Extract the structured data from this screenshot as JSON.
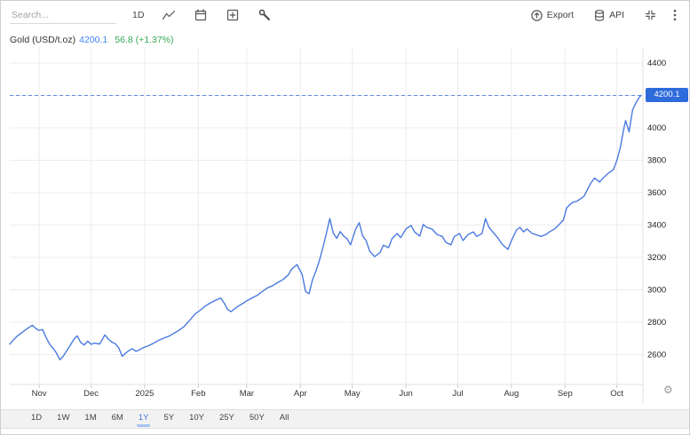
{
  "toolbar": {
    "search_placeholder": "Search...",
    "interval_label": "1D",
    "export_label": "Export",
    "api_label": "API"
  },
  "legend": {
    "series_label": "Gold (USD/t.oz)",
    "price": "4200.1",
    "change": "56.8 (+1.37%)"
  },
  "y_axis": {
    "badge": "4200.1",
    "ticks": [
      4400,
      4000,
      3800,
      3600,
      3400,
      3200,
      3000,
      2800,
      2600
    ]
  },
  "icons": {
    "settings": "⚙"
  },
  "colors": {
    "line": "#4a7be0",
    "current_price_badge": "#2e6bdb",
    "legend_price_text": "#4184f4",
    "legend_change_text": "#34a853",
    "grid": "#ececec",
    "axis_line": "#e2e2e2",
    "tick": "#c9c9c9",
    "active_range_text": "#4677e0",
    "active_range_underline": "#a6c2f5"
  },
  "range_selector": {
    "options": [
      "1D",
      "1W",
      "1M",
      "6M",
      "1Y",
      "5Y",
      "10Y",
      "25Y",
      "50Y",
      "All"
    ],
    "active": "1Y"
  },
  "chart_data": {
    "type": "line",
    "title": "Gold (USD/t.oz)",
    "legend_position": "top-left",
    "grid": true,
    "current_price": 4200.1,
    "change_label": "56.8 (+1.37%)",
    "x_range_days": 365,
    "ylim_gridlines": [
      2600,
      4400
    ],
    "y_gridline_step": 200,
    "y_tick_labels": [
      4400,
      4000,
      3800,
      3600,
      3400,
      3200,
      3000,
      2800,
      2600
    ],
    "month_ticks": [
      {
        "label": "Nov",
        "day": 17
      },
      {
        "label": "Dec",
        "day": 47
      },
      {
        "label": "2025",
        "day": 78
      },
      {
        "label": "Feb",
        "day": 109
      },
      {
        "label": "Mar",
        "day": 137
      },
      {
        "label": "Apr",
        "day": 168
      },
      {
        "label": "May",
        "day": 198
      },
      {
        "label": "Jun",
        "day": 229
      },
      {
        "label": "Jul",
        "day": 259
      },
      {
        "label": "Aug",
        "day": 290
      },
      {
        "label": "Sep",
        "day": 321
      },
      {
        "label": "Oct",
        "day": 351
      }
    ],
    "series": [
      {
        "name": "Gold (USD/t.oz)",
        "points": [
          [
            0,
            2665
          ],
          [
            2,
            2690
          ],
          [
            4,
            2712
          ],
          [
            7,
            2736
          ],
          [
            10,
            2760
          ],
          [
            13,
            2782
          ],
          [
            15,
            2762
          ],
          [
            17,
            2750
          ],
          [
            19,
            2755
          ],
          [
            21,
            2706
          ],
          [
            23,
            2665
          ],
          [
            25,
            2640
          ],
          [
            27,
            2610
          ],
          [
            29,
            2568
          ],
          [
            31,
            2592
          ],
          [
            33,
            2625
          ],
          [
            35,
            2658
          ],
          [
            37,
            2694
          ],
          [
            39,
            2716
          ],
          [
            41,
            2675
          ],
          [
            43,
            2660
          ],
          [
            45,
            2684
          ],
          [
            47,
            2664
          ],
          [
            49,
            2672
          ],
          [
            52,
            2666
          ],
          [
            55,
            2722
          ],
          [
            57,
            2696
          ],
          [
            59,
            2678
          ],
          [
            61,
            2668
          ],
          [
            63,
            2642
          ],
          [
            65,
            2590
          ],
          [
            67,
            2610
          ],
          [
            69,
            2626
          ],
          [
            71,
            2636
          ],
          [
            73,
            2620
          ],
          [
            75,
            2630
          ],
          [
            77,
            2642
          ],
          [
            80,
            2654
          ],
          [
            83,
            2670
          ],
          [
            86,
            2688
          ],
          [
            89,
            2702
          ],
          [
            92,
            2714
          ],
          [
            95,
            2732
          ],
          [
            98,
            2752
          ],
          [
            101,
            2776
          ],
          [
            104,
            2812
          ],
          [
            107,
            2850
          ],
          [
            110,
            2874
          ],
          [
            113,
            2900
          ],
          [
            116,
            2920
          ],
          [
            119,
            2936
          ],
          [
            122,
            2950
          ],
          [
            124,
            2918
          ],
          [
            126,
            2878
          ],
          [
            128,
            2866
          ],
          [
            131,
            2892
          ],
          [
            134,
            2912
          ],
          [
            137,
            2932
          ],
          [
            140,
            2950
          ],
          [
            143,
            2966
          ],
          [
            146,
            2990
          ],
          [
            149,
            3012
          ],
          [
            152,
            3026
          ],
          [
            155,
            3046
          ],
          [
            158,
            3064
          ],
          [
            161,
            3092
          ],
          [
            163,
            3128
          ],
          [
            166,
            3156
          ],
          [
            169,
            3096
          ],
          [
            171,
            2990
          ],
          [
            173,
            2976
          ],
          [
            175,
            3062
          ],
          [
            177,
            3116
          ],
          [
            179,
            3182
          ],
          [
            181,
            3260
          ],
          [
            183,
            3348
          ],
          [
            185,
            3440
          ],
          [
            187,
            3350
          ],
          [
            189,
            3318
          ],
          [
            191,
            3360
          ],
          [
            193,
            3332
          ],
          [
            195,
            3316
          ],
          [
            197,
            3278
          ],
          [
            200,
            3376
          ],
          [
            202,
            3415
          ],
          [
            204,
            3332
          ],
          [
            206,
            3304
          ],
          [
            208,
            3240
          ],
          [
            211,
            3205
          ],
          [
            214,
            3230
          ],
          [
            216,
            3276
          ],
          [
            219,
            3260
          ],
          [
            221,
            3316
          ],
          [
            224,
            3348
          ],
          [
            226,
            3322
          ],
          [
            229,
            3376
          ],
          [
            232,
            3398
          ],
          [
            234,
            3358
          ],
          [
            237,
            3332
          ],
          [
            239,
            3404
          ],
          [
            241,
            3386
          ],
          [
            244,
            3376
          ],
          [
            247,
            3342
          ],
          [
            250,
            3330
          ],
          [
            252,
            3295
          ],
          [
            255,
            3277
          ],
          [
            257,
            3330
          ],
          [
            260,
            3348
          ],
          [
            262,
            3304
          ],
          [
            265,
            3342
          ],
          [
            268,
            3358
          ],
          [
            270,
            3330
          ],
          [
            273,
            3348
          ],
          [
            275,
            3440
          ],
          [
            277,
            3386
          ],
          [
            280,
            3348
          ],
          [
            282,
            3322
          ],
          [
            285,
            3277
          ],
          [
            288,
            3250
          ],
          [
            290,
            3304
          ],
          [
            293,
            3370
          ],
          [
            295,
            3386
          ],
          [
            297,
            3358
          ],
          [
            299,
            3376
          ],
          [
            302,
            3348
          ],
          [
            304,
            3342
          ],
          [
            307,
            3330
          ],
          [
            310,
            3342
          ],
          [
            312,
            3358
          ],
          [
            315,
            3376
          ],
          [
            317,
            3397
          ],
          [
            320,
            3430
          ],
          [
            322,
            3507
          ],
          [
            325,
            3538
          ],
          [
            328,
            3548
          ],
          [
            330,
            3562
          ],
          [
            332,
            3578
          ],
          [
            334,
            3620
          ],
          [
            336,
            3660
          ],
          [
            338,
            3690
          ],
          [
            341,
            3665
          ],
          [
            343,
            3690
          ],
          [
            346,
            3720
          ],
          [
            349,
            3742
          ],
          [
            351,
            3800
          ],
          [
            353,
            3880
          ],
          [
            355,
            3995
          ],
          [
            356,
            4045
          ],
          [
            358,
            3975
          ],
          [
            360,
            4110
          ],
          [
            362,
            4155
          ],
          [
            364,
            4190
          ],
          [
            365,
            4200.1
          ]
        ]
      }
    ]
  }
}
